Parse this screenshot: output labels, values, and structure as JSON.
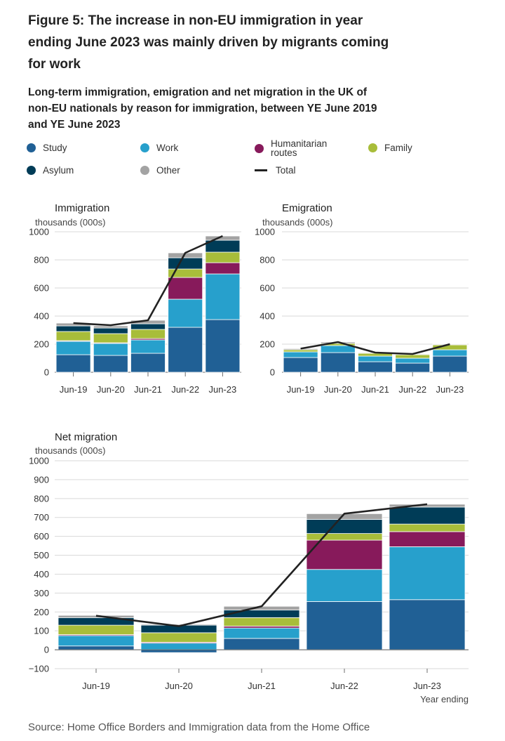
{
  "title": "Figure 5: The increase in non-EU immigration in year ending June 2023 was mainly driven by migrants coming for work",
  "subtitle": "Long-term immigration, emigration and net migration in the UK of non-EU nationals by reason for immigration, between YE June 2019 and YE June 2023",
  "source": "Source: Home Office Borders and Immigration data from the Home Office",
  "legend": [
    {
      "name": "Study",
      "color": "#206095"
    },
    {
      "name": "Work",
      "color": "#27a0cc"
    },
    {
      "name": "Humanitarian routes",
      "color": "#871a5b"
    },
    {
      "name": "Family",
      "color": "#a8bd3a"
    },
    {
      "name": "Asylum",
      "color": "#003c57"
    },
    {
      "name": "Other",
      "color": "#a3a3a3"
    },
    {
      "name": "Total",
      "color": "#222222",
      "kind": "line"
    }
  ],
  "chart_data": [
    {
      "type": "bar",
      "stacked": true,
      "title": "Immigration",
      "ylabel": "thousands (000s)",
      "xlabel": "",
      "ylim": [
        0,
        1000
      ],
      "yticks": [
        0,
        200,
        400,
        600,
        800,
        1000
      ],
      "categories": [
        "Jun-19",
        "Jun-20",
        "Jun-21",
        "Jun-22",
        "Jun-23"
      ],
      "series": [
        {
          "name": "Study",
          "values": [
            125,
            120,
            135,
            320,
            375
          ]
        },
        {
          "name": "Work",
          "values": [
            95,
            85,
            95,
            200,
            325
          ]
        },
        {
          "name": "Humanitarian routes",
          "values": [
            5,
            5,
            10,
            155,
            80
          ]
        },
        {
          "name": "Family",
          "values": [
            65,
            65,
            65,
            60,
            75
          ]
        },
        {
          "name": "Asylum",
          "values": [
            40,
            40,
            40,
            80,
            85
          ]
        },
        {
          "name": "Other",
          "values": [
            20,
            15,
            25,
            35,
            30
          ]
        }
      ],
      "total": [
        350,
        335,
        370,
        850,
        970
      ]
    },
    {
      "type": "bar",
      "stacked": true,
      "title": "Emigration",
      "ylabel": "thousands (000s)",
      "xlabel": "",
      "ylim": [
        0,
        1000
      ],
      "yticks": [
        0,
        200,
        400,
        600,
        800,
        1000
      ],
      "categories": [
        "Jun-19",
        "Jun-20",
        "Jun-21",
        "Jun-22",
        "Jun-23"
      ],
      "series": [
        {
          "name": "Study",
          "values": [
            105,
            140,
            75,
            65,
            115
          ]
        },
        {
          "name": "Work",
          "values": [
            40,
            50,
            40,
            35,
            45
          ]
        },
        {
          "name": "Humanitarian routes",
          "values": [
            0,
            0,
            0,
            0,
            0
          ]
        },
        {
          "name": "Family",
          "values": [
            15,
            15,
            20,
            25,
            35
          ]
        },
        {
          "name": "Asylum",
          "values": [
            0,
            0,
            0,
            0,
            0
          ]
        },
        {
          "name": "Other",
          "values": [
            8,
            10,
            5,
            5,
            5
          ]
        }
      ],
      "total": [
        168,
        215,
        140,
        130,
        200
      ]
    },
    {
      "type": "bar",
      "stacked": true,
      "title": "Net migration",
      "ylabel": "thousands (000s)",
      "xlabel": "Year ending",
      "ylim": [
        -100,
        1000
      ],
      "yticks": [
        -100,
        0,
        100,
        200,
        300,
        400,
        500,
        600,
        700,
        800,
        900,
        1000
      ],
      "categories": [
        "Jun-19",
        "Jun-20",
        "Jun-21",
        "Jun-22",
        "Jun-23"
      ],
      "series": [
        {
          "name": "Study",
          "values": [
            20,
            -15,
            60,
            255,
            265
          ]
        },
        {
          "name": "Work",
          "values": [
            55,
            35,
            55,
            170,
            280
          ]
        },
        {
          "name": "Humanitarian routes",
          "values": [
            5,
            5,
            10,
            155,
            80
          ]
        },
        {
          "name": "Family",
          "values": [
            50,
            50,
            45,
            35,
            40
          ]
        },
        {
          "name": "Asylum",
          "values": [
            40,
            40,
            40,
            75,
            90
          ]
        },
        {
          "name": "Other",
          "values": [
            12,
            5,
            20,
            30,
            15
          ]
        }
      ],
      "total": [
        180,
        125,
        230,
        720,
        770
      ]
    }
  ]
}
